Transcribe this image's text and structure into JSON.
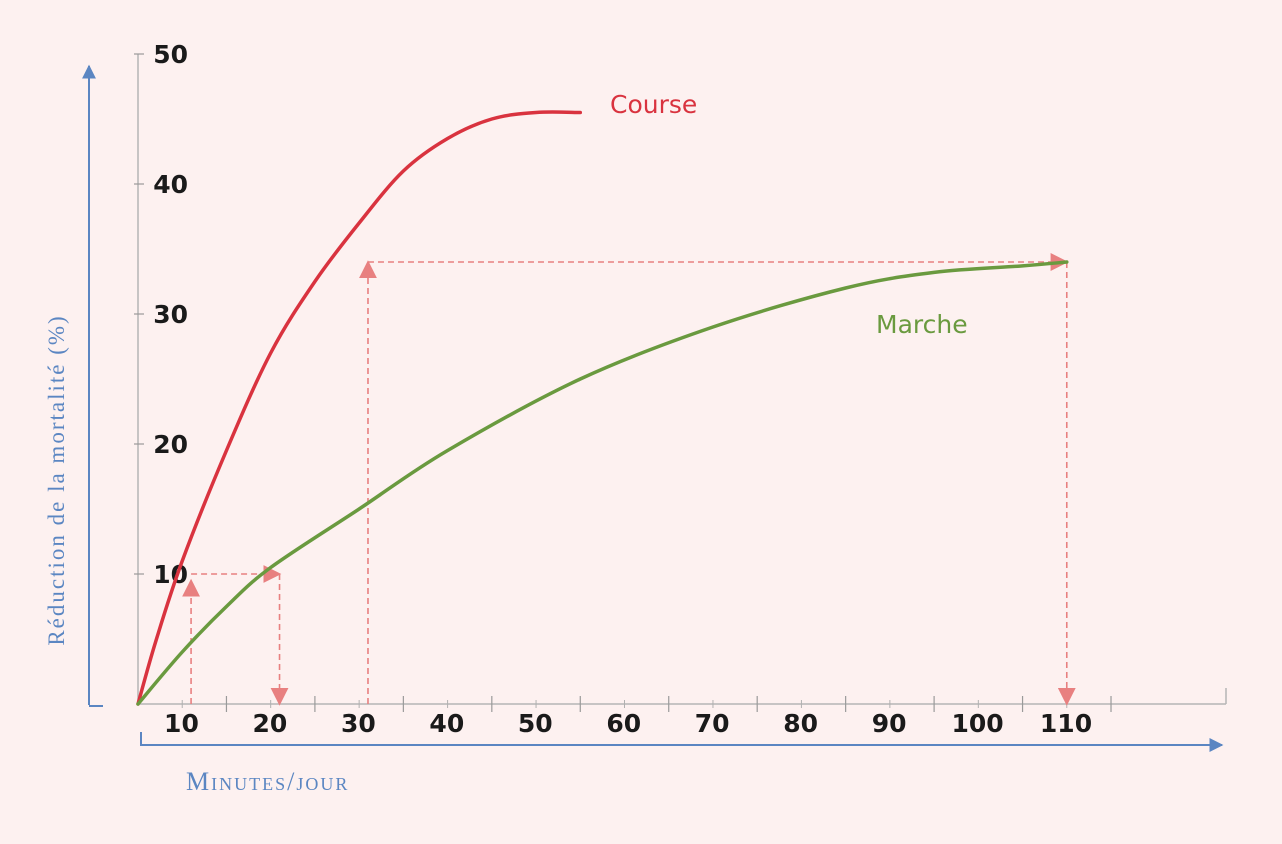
{
  "chart_data": {
    "type": "line",
    "title": "",
    "xlabel": "Minutes/jour",
    "ylabel": "Réduction de la mortalité (%)",
    "x_ticks": [
      10,
      20,
      30,
      40,
      50,
      60,
      70,
      80,
      90,
      100,
      110
    ],
    "y_ticks": [
      10,
      20,
      30,
      40,
      50
    ],
    "xlim": [
      0,
      123
    ],
    "ylim": [
      0,
      50
    ],
    "grid": false,
    "series": [
      {
        "name": "Course",
        "color": "#d9333f",
        "x": [
          0,
          2,
          5,
          10,
          15,
          20,
          25,
          30,
          35,
          40,
          45,
          50
        ],
        "y": [
          0,
          4.8,
          11,
          19.5,
          27,
          32.5,
          37,
          41,
          43.5,
          45,
          45.5,
          45.5
        ]
      },
      {
        "name": "Marche",
        "color": "#6a9a3f",
        "x": [
          0,
          5,
          10,
          15,
          25,
          35,
          50,
          65,
          80,
          90,
          100,
          105
        ],
        "y": [
          0,
          4,
          7.5,
          10.5,
          15,
          19.5,
          25,
          29,
          32,
          33.2,
          33.7,
          34
        ]
      }
    ],
    "annotations": [
      {
        "type": "arrow",
        "color": "#e88080",
        "from": [
          6,
          0
        ],
        "to": [
          6,
          9.5
        ]
      },
      {
        "type": "arrow",
        "color": "#e88080",
        "from": [
          6,
          10
        ],
        "to": [
          16,
          10
        ]
      },
      {
        "type": "arrow",
        "color": "#e88080",
        "from": [
          16,
          10
        ],
        "to": [
          16,
          0
        ]
      },
      {
        "type": "arrow",
        "color": "#e88080",
        "from": [
          26,
          0
        ],
        "to": [
          26,
          34
        ]
      },
      {
        "type": "arrow",
        "color": "#e88080",
        "from": [
          26,
          34
        ],
        "to": [
          105,
          34
        ]
      },
      {
        "type": "arrow",
        "color": "#e88080",
        "from": [
          105,
          34
        ],
        "to": [
          105,
          0
        ]
      }
    ]
  }
}
